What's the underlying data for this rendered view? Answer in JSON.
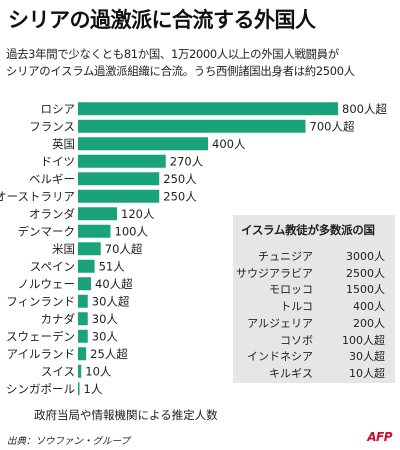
{
  "title": "シリアの過激派に合流する外国人",
  "lead_lines": [
    "過去3年間で少なくとも81か国、1万2000人以上の外国人戦闘員が",
    "シリアのイスラム過激派組織に合流。うち西側諸国出身者は約2500人"
  ],
  "colors": {
    "bar": "#1aa37a",
    "inset_bg": "#e6e6e6",
    "logo": "#c8102e"
  },
  "chart_data": {
    "type": "bar",
    "orientation": "horizontal",
    "title": "シリアの過激派に合流する外国人",
    "categories": [
      "ロシア",
      "フランス",
      "英国",
      "ドイツ",
      "ベルギー",
      "オーストラリア",
      "オランダ",
      "デンマーク",
      "米国",
      "スペイン",
      "ノルウェー",
      "フィンランド",
      "カナダ",
      "スウェーデン",
      "アイルランド",
      "スイス",
      "シンガポール"
    ],
    "values": [
      800,
      700,
      400,
      270,
      250,
      250,
      120,
      100,
      70,
      51,
      40,
      30,
      30,
      30,
      25,
      10,
      1
    ],
    "value_labels": [
      "800人超",
      "700人超",
      "400人",
      "270人",
      "250人",
      "250人",
      "120人",
      "100人",
      "70人超",
      "51人",
      "40人超",
      "30人超",
      "30人",
      "30人",
      "25人超",
      "10人",
      "1人"
    ],
    "xlim": [
      0,
      800
    ],
    "xlabel": "",
    "ylabel": "",
    "grid": false,
    "note": "政府当局や情報機関による推定人数"
  },
  "inset": {
    "title": "イスラム教徒が多数派の国",
    "rows": [
      {
        "country": "チュニジア",
        "value": "3000人"
      },
      {
        "country": "サウジアラビア",
        "value": "2500人"
      },
      {
        "country": "モロッコ",
        "value": "1500人"
      },
      {
        "country": "トルコ",
        "value": "400人"
      },
      {
        "country": "アルジェリア",
        "value": "200人"
      },
      {
        "country": "コソボ",
        "value": "100人超"
      },
      {
        "country": "インドネシア",
        "value": "30人超"
      },
      {
        "country": "キルギス",
        "value": "10人超"
      }
    ]
  },
  "note": "政府当局や情報機関による推定人数",
  "source": "出典：ソウファン・グループ",
  "logo": "AFP"
}
